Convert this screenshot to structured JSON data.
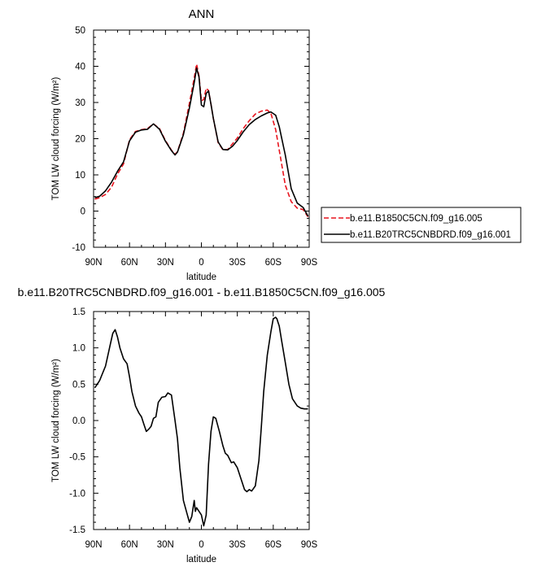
{
  "chart_data": [
    {
      "type": "line",
      "title": "ANN",
      "xlabel": "latitude",
      "ylabel": "TOM LW cloud forcing (W/m²)",
      "xlim": [
        90,
        -90
      ],
      "ylim": [
        -10,
        50
      ],
      "x_tick_values": [
        90,
        60,
        30,
        0,
        -30,
        -60,
        -90
      ],
      "x_tick_labels": [
        "90N",
        "60N",
        "30N",
        "0",
        "30S",
        "60S",
        "90S"
      ],
      "y_tick_values": [
        -10,
        0,
        10,
        20,
        30,
        40,
        50
      ],
      "y_tick_labels": [
        "-10",
        "0",
        "10",
        "20",
        "30",
        "40",
        "50"
      ],
      "legend_position": "right",
      "series": [
        {
          "name": "b.e11.B1850C5CN.f09_g16.005",
          "color": "#e8141e",
          "dash": "dashed",
          "x": [
            89,
            85,
            80,
            75,
            70,
            65,
            60,
            55,
            50,
            45,
            40,
            35,
            30,
            25,
            22,
            20,
            15,
            10,
            6,
            4,
            2,
            0,
            -2,
            -4,
            -6,
            -8,
            -10,
            -14,
            -18,
            -22,
            -26,
            -30,
            -35,
            -40,
            -45,
            -50,
            -55,
            -58,
            -62,
            -65,
            -70,
            -75,
            -80,
            -85,
            -89
          ],
          "y": [
            3.3,
            3.7,
            4.6,
            6.6,
            10.2,
            13.0,
            19.7,
            22.0,
            22.5,
            22.8,
            24.1,
            22.8,
            19.5,
            16.8,
            15.7,
            16.4,
            21.5,
            29.8,
            36.8,
            40.6,
            37.3,
            30.5,
            30.8,
            33.9,
            33.3,
            29.5,
            25.6,
            18.9,
            16.9,
            17.0,
            18.6,
            20.2,
            22.8,
            25.0,
            26.8,
            27.6,
            27.9,
            27.0,
            22.5,
            16.8,
            7.2,
            2.6,
            0.8,
            0.4,
            -1.6
          ]
        },
        {
          "name": "b.e11.B20TRC5CNBDRD.f09_g16.001",
          "color": "#000000",
          "dash": "solid",
          "x": [
            89,
            85,
            80,
            75,
            70,
            65,
            60,
            55,
            50,
            45,
            40,
            35,
            30,
            25,
            22,
            20,
            15,
            10,
            6,
            4,
            2,
            0,
            -2,
            -4,
            -6,
            -8,
            -10,
            -14,
            -18,
            -22,
            -26,
            -30,
            -35,
            -40,
            -45,
            -50,
            -55,
            -58,
            -62,
            -65,
            -70,
            -75,
            -80,
            -85,
            -89
          ],
          "y": [
            3.7,
            4.1,
            5.6,
            8.0,
            11.0,
            13.6,
            19.4,
            21.8,
            22.4,
            22.6,
            24.1,
            22.6,
            19.3,
            16.7,
            15.5,
            16.3,
            21.1,
            28.5,
            35.5,
            39.5,
            37.0,
            29.3,
            28.8,
            32.5,
            33.2,
            29.5,
            25.6,
            19.1,
            17.0,
            16.9,
            17.9,
            19.5,
            21.9,
            23.9,
            25.3,
            26.3,
            27.1,
            27.4,
            26.5,
            23.3,
            15.5,
            6.2,
            2.2,
            1.0,
            -1.4
          ]
        }
      ]
    },
    {
      "type": "line",
      "title": "b.e11.B20TRC5CNBDRD.f09_g16.001 - b.e11.B1850C5CN.f09_g16.005",
      "xlabel": "latitude",
      "ylabel": "TOM LW cloud forcing (W/m²)",
      "xlim": [
        90,
        -90
      ],
      "ylim": [
        -1.5,
        1.5
      ],
      "x_tick_values": [
        90,
        60,
        30,
        0,
        -30,
        -60,
        -90
      ],
      "x_tick_labels": [
        "90N",
        "60N",
        "30N",
        "0",
        "30S",
        "60S",
        "90S"
      ],
      "y_tick_values": [
        -1.5,
        -1.0,
        -0.5,
        0.0,
        0.5,
        1.0,
        1.5
      ],
      "y_tick_labels": [
        "-1.5",
        "-1.0",
        "-0.5",
        "0.0",
        "0.5",
        "1.0",
        "1.5"
      ],
      "series": [
        {
          "color": "#000000",
          "dash": "solid",
          "x": [
            89,
            85,
            80,
            76,
            74,
            72,
            70,
            68,
            65,
            62,
            60,
            58,
            55,
            52,
            50,
            48,
            46,
            44,
            42,
            40,
            38,
            36,
            33,
            30,
            28,
            25,
            22,
            20,
            18,
            15,
            12,
            10,
            8,
            6,
            5,
            4,
            2,
            0,
            -2,
            -4,
            -6,
            -8,
            -10,
            -12,
            -15,
            -18,
            -20,
            -22,
            -25,
            -27,
            -30,
            -33,
            -36,
            -38,
            -40,
            -42,
            -45,
            -48,
            -50,
            -52,
            -55,
            -58,
            -60,
            -62,
            -63,
            -64,
            -65,
            -67,
            -70,
            -73,
            -76,
            -80,
            -83,
            -86,
            -89
          ],
          "y": [
            0.45,
            0.55,
            0.75,
            1.05,
            1.2,
            1.25,
            1.15,
            1.0,
            0.85,
            0.78,
            0.6,
            0.4,
            0.2,
            0.1,
            0.05,
            -0.05,
            -0.15,
            -0.12,
            -0.08,
            0.03,
            0.05,
            0.25,
            0.32,
            0.33,
            0.38,
            0.35,
            0.0,
            -0.25,
            -0.65,
            -1.1,
            -1.28,
            -1.4,
            -1.32,
            -1.1,
            -1.25,
            -1.2,
            -1.25,
            -1.3,
            -1.45,
            -1.3,
            -0.6,
            -0.15,
            0.05,
            0.03,
            -0.15,
            -0.35,
            -0.45,
            -0.48,
            -0.58,
            -0.57,
            -0.65,
            -0.8,
            -0.95,
            -0.98,
            -0.95,
            -0.97,
            -0.9,
            -0.55,
            -0.1,
            0.4,
            0.9,
            1.22,
            1.4,
            1.42,
            1.4,
            1.35,
            1.3,
            1.1,
            0.8,
            0.5,
            0.3,
            0.2,
            0.17,
            0.16,
            0.16
          ]
        }
      ]
    }
  ]
}
